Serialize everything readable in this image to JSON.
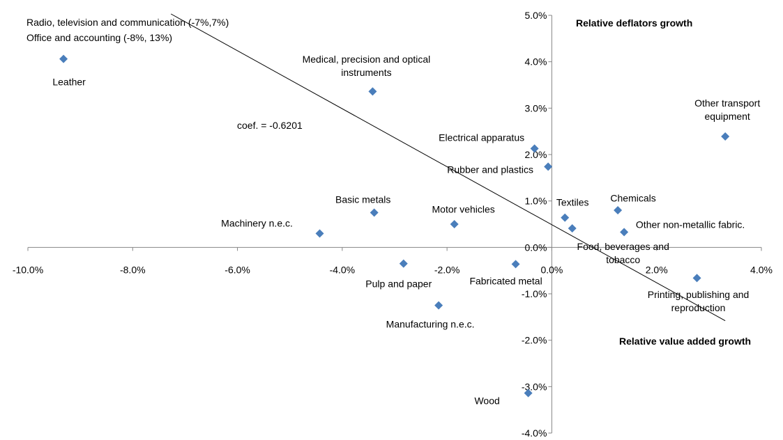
{
  "chart_data": {
    "type": "scatter",
    "xlim": [
      -10,
      4
    ],
    "ylim": [
      -4,
      5
    ],
    "xticks": [
      {
        "value": -10,
        "label": "-10.0%"
      },
      {
        "value": -8,
        "label": "-8.0%"
      },
      {
        "value": -6,
        "label": "-6.0%"
      },
      {
        "value": -4,
        "label": "-4.0%"
      },
      {
        "value": -2,
        "label": "-2.0%"
      },
      {
        "value": 0,
        "label": "0.0%"
      },
      {
        "value": 2,
        "label": "2.0%"
      },
      {
        "value": 4,
        "label": "4.0%"
      }
    ],
    "yticks": [
      {
        "value": -4,
        "label": "-4.0%"
      },
      {
        "value": -3,
        "label": "-3.0%"
      },
      {
        "value": -2,
        "label": "-2.0%"
      },
      {
        "value": -1,
        "label": "-1.0%"
      },
      {
        "value": 0,
        "label": "0.0%"
      },
      {
        "value": 1,
        "label": "1.0%"
      },
      {
        "value": 2,
        "label": "2.0%"
      },
      {
        "value": 3,
        "label": "3.0%"
      },
      {
        "value": 4,
        "label": "4.0%"
      },
      {
        "value": 5,
        "label": "5.0%"
      }
    ],
    "color": "#4a7ebb",
    "points": {
      "labels": [
        "Leather",
        "Medical, precision and optical instruments",
        "Other transport equipment",
        "Electrical apparatus",
        "Rubber and plastics",
        "Basic metals",
        "Machinery  n.e.c.",
        "Motor vehicles",
        "Textiles",
        "Chemicals",
        "Food, beverages and tobacco",
        "Other non-metallic fabric.",
        "Pulp and paper",
        "Fabricated metal",
        "Manufacturing n.e.c.",
        "Printing, publishing and reproduction",
        "Wood"
      ],
      "x": [
        -9.32,
        -3.42,
        3.31,
        -0.33,
        -0.07,
        -3.39,
        -4.43,
        -1.86,
        0.25,
        1.26,
        0.39,
        1.38,
        -2.83,
        -0.69,
        -2.16,
        2.77,
        -0.45
      ],
      "y": [
        4.06,
        3.36,
        2.39,
        2.13,
        1.74,
        0.75,
        0.3,
        0.5,
        0.64,
        0.8,
        0.41,
        0.33,
        -0.35,
        -0.36,
        -1.25,
        -0.66,
        -3.14
      ]
    },
    "trendline": {
      "x": [
        -7.27,
        3.31
      ],
      "y": [
        5.03,
        -1.58
      ]
    },
    "annotations": [
      "Radio, television and communication (-7%,7%)",
      "Office and accounting (-8%, 13%)",
      "coef. = -0.6201",
      "Relative deflators growth",
      "Relative value added growth"
    ]
  }
}
